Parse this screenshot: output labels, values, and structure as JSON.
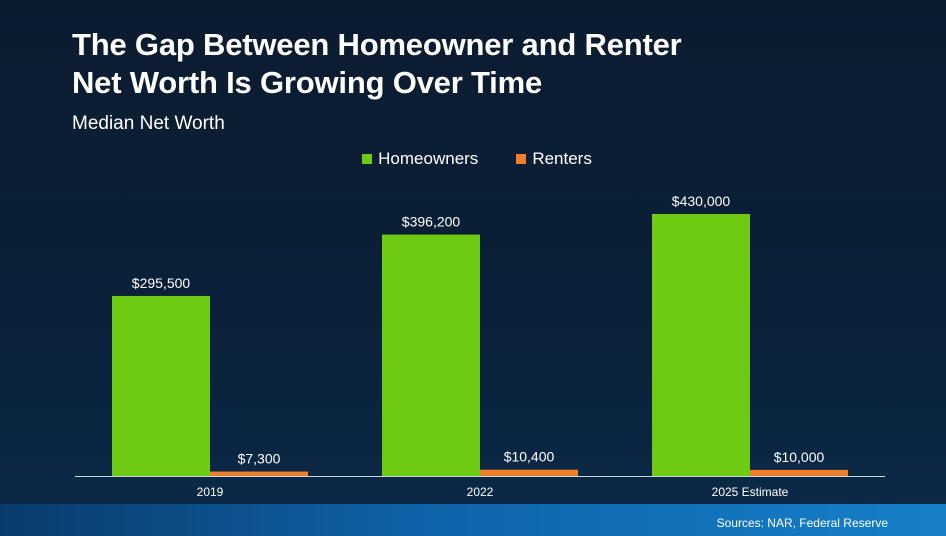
{
  "colors": {
    "homeowners": "#6fca14",
    "renters": "#ee7f2d",
    "axis": "#d0d6de",
    "text": "#ffffff"
  },
  "chart_data": {
    "type": "bar",
    "title_lines": [
      "The Gap Between Homeowner and Renter",
      "Net Worth Is Growing Over Time"
    ],
    "subtitle": "Median Net Worth",
    "categories": [
      "2019",
      "2022",
      "2025 Estimate"
    ],
    "series": [
      {
        "name": "Homeowners",
        "values": [
          295500,
          396200,
          430000
        ],
        "labels": [
          "$295,500",
          "$396,200",
          "$430,000"
        ]
      },
      {
        "name": "Renters",
        "values": [
          7300,
          10400,
          10000
        ],
        "labels": [
          "$7,300",
          "$10,400",
          "$10,000"
        ]
      }
    ],
    "ylim": [
      0,
      430000
    ],
    "grid": false,
    "legend_position": "top-center"
  },
  "footer": {
    "source": "Sources: NAR, Federal Reserve"
  }
}
